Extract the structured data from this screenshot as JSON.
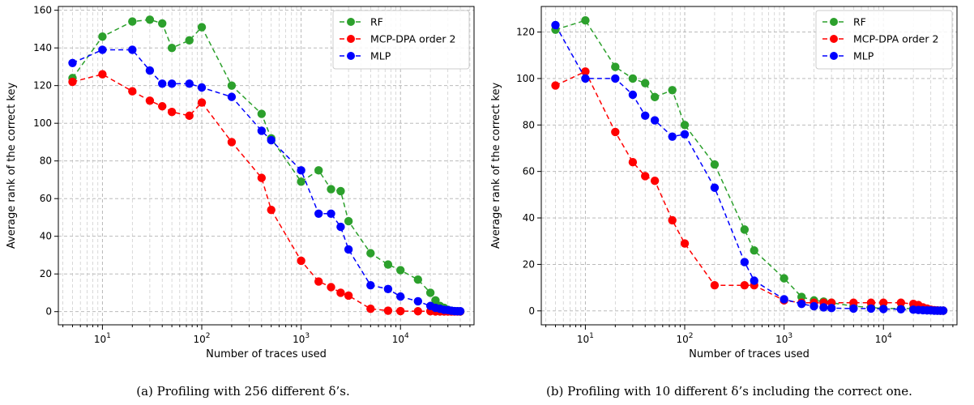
{
  "chart_data": [
    {
      "type": "line",
      "xscale": "log",
      "xlabel": "Number of traces used",
      "ylabel": "Average rank of the correct key",
      "xlim": [
        3.6,
        55000
      ],
      "ylim": [
        -7,
        162
      ],
      "yticks": [
        0,
        20,
        40,
        60,
        80,
        100,
        120,
        140,
        160
      ],
      "xticks": [
        10,
        100,
        1000,
        10000
      ],
      "xtick_labels": [
        "10^1",
        "10^2",
        "10^3",
        "10^4"
      ],
      "grid": true,
      "legend_position": "top-right",
      "caption": "(a) Profiling with 256 different δ’s.",
      "series": [
        {
          "name": "RF",
          "color": "#2ca02c",
          "x": [
            5,
            10,
            20,
            30,
            40,
            50,
            75,
            100,
            200,
            400,
            500,
            1000,
            1500,
            2000,
            2500,
            3000,
            5000,
            7500,
            10000,
            15000,
            20000,
            22500,
            25000,
            27500,
            30000,
            32500,
            35000,
            37500,
            40000
          ],
          "y": [
            124,
            146,
            154,
            155,
            153,
            140,
            144,
            151,
            120,
            105,
            92,
            69,
            75,
            65,
            64,
            48,
            31,
            25,
            22,
            17,
            10,
            6,
            3,
            2,
            1,
            0.5,
            0.3,
            0.2,
            0.1
          ]
        },
        {
          "name": "MCP-DPA order 2",
          "color": "#ff0000",
          "x": [
            5,
            10,
            20,
            30,
            40,
            50,
            75,
            100,
            200,
            400,
            500,
            1000,
            1500,
            2000,
            2500,
            3000,
            5000,
            7500,
            10000,
            15000,
            20000,
            22500,
            25000,
            27500,
            30000,
            32500,
            35000,
            37500,
            40000
          ],
          "y": [
            122,
            126,
            117,
            112,
            109,
            106,
            104,
            111,
            90,
            71,
            54,
            27,
            16,
            13,
            10,
            8.5,
            1.5,
            0.5,
            0.3,
            0.2,
            0.2,
            0.1,
            0.1,
            0.1,
            0.1,
            0.1,
            0.1,
            0.1,
            0.1
          ]
        },
        {
          "name": "MLP",
          "color": "#0000ff",
          "x": [
            5,
            10,
            20,
            30,
            40,
            50,
            75,
            100,
            200,
            400,
            500,
            1000,
            1500,
            2000,
            2500,
            3000,
            5000,
            7500,
            10000,
            15000,
            20000,
            22500,
            25000,
            27500,
            30000,
            32500,
            35000,
            37500,
            40000
          ],
          "y": [
            132,
            139,
            139,
            128,
            121,
            121,
            121,
            119,
            114,
            96,
            91,
            75,
            52,
            52,
            45,
            33,
            14,
            12,
            8,
            5.5,
            3,
            2,
            1.5,
            1,
            0.8,
            0.5,
            0.3,
            0.2,
            0.2
          ]
        }
      ]
    },
    {
      "type": "line",
      "xscale": "log",
      "xlabel": "Number of traces used",
      "ylabel": "Average rank of the correct key",
      "xlim": [
        3.6,
        55000
      ],
      "ylim": [
        -6,
        131
      ],
      "yticks": [
        0,
        20,
        40,
        60,
        80,
        100,
        120
      ],
      "xticks": [
        10,
        100,
        1000,
        10000
      ],
      "xtick_labels": [
        "10^1",
        "10^2",
        "10^3",
        "10^4"
      ],
      "grid": true,
      "legend_position": "top-right",
      "caption": "(b) Profiling with 10 different δ’s including the correct one.",
      "series": [
        {
          "name": "RF",
          "color": "#2ca02c",
          "x": [
            5,
            10,
            20,
            30,
            40,
            50,
            75,
            100,
            200,
            400,
            500,
            1000,
            1500,
            2000,
            2500,
            3000,
            5000,
            7500,
            10000,
            15000,
            20000,
            22500,
            25000,
            27500,
            30000,
            32500,
            35000,
            37500,
            40000
          ],
          "y": [
            121,
            125,
            105,
            100,
            98,
            92,
            95,
            80,
            63,
            35,
            26,
            14,
            6,
            4.5,
            4,
            3.5,
            2,
            1.5,
            1,
            1,
            1,
            0.5,
            0.5,
            0.3,
            0.2,
            0.2,
            0.1,
            0.1,
            0.1
          ]
        },
        {
          "name": "MCP-DPA order 2",
          "color": "#ff0000",
          "x": [
            5,
            10,
            20,
            30,
            40,
            50,
            75,
            100,
            200,
            400,
            500,
            1000,
            1500,
            2000,
            2500,
            3000,
            5000,
            7500,
            10000,
            15000,
            20000,
            22500,
            25000,
            27500,
            30000,
            32500,
            35000,
            37500,
            40000
          ],
          "y": [
            97,
            103,
            77,
            64,
            58,
            56,
            39,
            29,
            11,
            11,
            11,
            4.5,
            3.5,
            3.5,
            3.5,
            3.5,
            3.5,
            3.5,
            3.5,
            3.5,
            3,
            2.5,
            1.5,
            1,
            0.5,
            0.3,
            0.2,
            0.1,
            0.1
          ]
        },
        {
          "name": "MLP",
          "color": "#0000ff",
          "x": [
            5,
            10,
            20,
            30,
            40,
            50,
            75,
            100,
            200,
            400,
            500,
            1000,
            1500,
            2000,
            2500,
            3000,
            5000,
            7500,
            10000,
            15000,
            20000,
            22500,
            25000,
            27500,
            30000,
            32500,
            35000,
            37500,
            40000
          ],
          "y": [
            123,
            100,
            100,
            93,
            84,
            82,
            75,
            76,
            53,
            21,
            13,
            5,
            3,
            2,
            1.5,
            1.2,
            1,
            1,
            0.8,
            0.7,
            0.5,
            0.4,
            0.3,
            0.2,
            0.2,
            0.1,
            0.1,
            0.1,
            0.1
          ]
        }
      ]
    }
  ]
}
